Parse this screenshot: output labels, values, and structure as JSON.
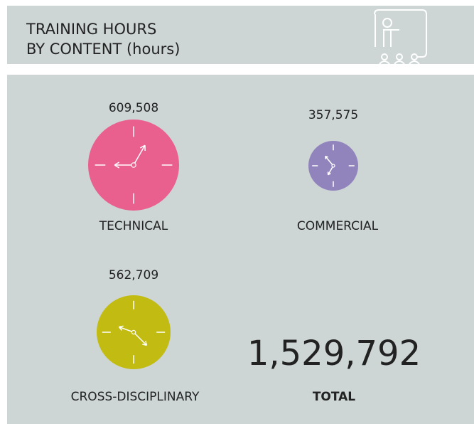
{
  "header": {
    "title": [
      "TRAINING HOURS",
      "BY CONTENT (hours)"
    ]
  },
  "items": [
    {
      "label": "TECHNICAL",
      "value": "609,508",
      "color": "#e95f8e"
    },
    {
      "label": "COMMERCIAL",
      "value": "357,575",
      "color": "#9184bd"
    },
    {
      "label": "CROSS-DISCIPLINARY",
      "value": "562,709",
      "color": "#c2bc12"
    }
  ],
  "total": {
    "label": "TOTAL",
    "value": "1,529,792"
  }
}
